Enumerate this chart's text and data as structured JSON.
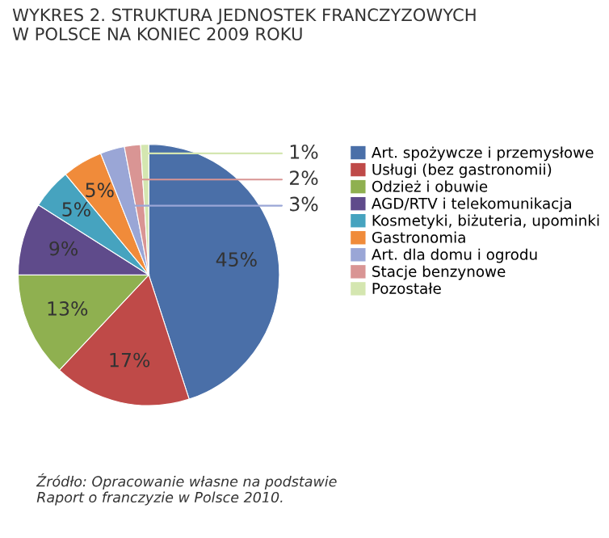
{
  "chart_data": {
    "type": "pie",
    "title": "WYKRES 2. STRUKTURA JEDNOSTEK FRANCZYZOWYCH\nW POLSCE NA KONIEC 2009 ROKU",
    "categories": [
      "Art. spożywcze i przemysłowe",
      "Usługi (bez gastronomii)",
      "Odzież i obuwie",
      "AGD/RTV i telekomunikacja",
      "Kosmetyki, biżuteria, upominki",
      "Gastronomia",
      "Art. dla domu i ogrodu",
      "Stacje benzynowe",
      "Pozostałe"
    ],
    "values": [
      45,
      17,
      13,
      9,
      5,
      5,
      3,
      2,
      1
    ],
    "value_labels": [
      "45%",
      "17%",
      "13%",
      "9%",
      "5%",
      "5%",
      "3%",
      "2%",
      "1%"
    ],
    "colors": [
      "#4a6fa8",
      "#bf4a48",
      "#8fb050",
      "#5f4b8b",
      "#46a3bf",
      "#f08b3a",
      "#9aa6d6",
      "#d99594",
      "#d4e6b0"
    ],
    "legend": "top right",
    "annotations": [
      "Źródło: Opracowanie własne na podstawie\nRaport o franczyzie w Polsce 2010."
    ]
  }
}
